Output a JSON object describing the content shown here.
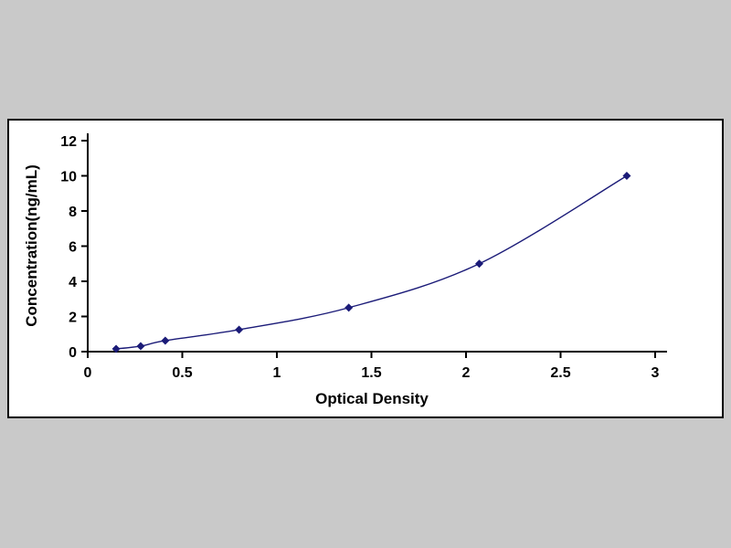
{
  "chart_data": {
    "type": "line",
    "title": "",
    "xlabel": "Optical Density",
    "ylabel": "Concentration(ng/mL)",
    "x": [
      0.15,
      0.28,
      0.41,
      0.8,
      1.38,
      2.07,
      2.85
    ],
    "y": [
      0.156,
      0.312,
      0.625,
      1.25,
      2.5,
      5,
      10
    ],
    "xlim": [
      0,
      3
    ],
    "ylim": [
      0,
      12
    ],
    "x_ticks": [
      0,
      0.5,
      1,
      1.5,
      2,
      2.5,
      3
    ],
    "x_tick_labels": [
      "0",
      "0.5",
      "1",
      "1.5",
      "2",
      "2.5",
      "3"
    ],
    "y_ticks": [
      0,
      2,
      4,
      6,
      8,
      10,
      12
    ],
    "y_tick_labels": [
      "0",
      "2",
      "4",
      "6",
      "8",
      "10",
      "12"
    ],
    "grid": false,
    "legend": "none",
    "marker": "diamond",
    "series_name": "elisa-standard-curve",
    "colors": {
      "line": "#1b1b78",
      "marker": "#1b1b78",
      "axis": "#000000",
      "plot_bg": "#ffffff",
      "page_bg": "#c9c9c9",
      "text": "#000000"
    }
  }
}
